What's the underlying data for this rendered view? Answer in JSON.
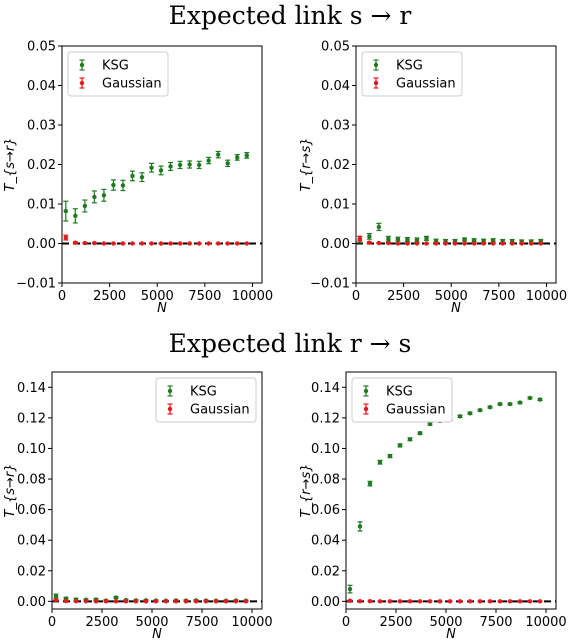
{
  "sections": [
    {
      "title": "Expected link s → r"
    },
    {
      "title": "Expected link r → s"
    }
  ],
  "colors": {
    "ksg": "#1f7a1f",
    "gaussian": "#e31a1c",
    "zero_line": "#000000"
  },
  "chart_data": [
    {
      "type": "scatter",
      "xlabel": "N",
      "ylabel": "T_{s→r}",
      "xlim": [
        0,
        10500
      ],
      "ylim": [
        -0.01,
        0.05
      ],
      "xticks": [
        0,
        2500,
        5000,
        7500,
        10000
      ],
      "yticks": [
        -0.01,
        0.0,
        0.01,
        0.02,
        0.03,
        0.04,
        0.05
      ],
      "ytick_labels": [
        "−0.01",
        "0.00",
        "0.01",
        "0.02",
        "0.03",
        "0.04",
        "0.05"
      ],
      "legend": {
        "position": "top-left",
        "entries": [
          "KSG",
          "Gaussian"
        ]
      },
      "series": [
        {
          "name": "KSG",
          "x": [
            200,
            700,
            1200,
            1700,
            2200,
            2700,
            3200,
            3700,
            4200,
            4700,
            5200,
            5700,
            6200,
            6700,
            7200,
            7700,
            8200,
            8700,
            9200,
            9700
          ],
          "y": [
            0.0082,
            0.007,
            0.0095,
            0.0118,
            0.0122,
            0.0148,
            0.0147,
            0.0171,
            0.0168,
            0.0192,
            0.0185,
            0.0195,
            0.0199,
            0.02,
            0.0199,
            0.021,
            0.0225,
            0.0203,
            0.0218,
            0.0223
          ],
          "err": [
            0.0025,
            0.0018,
            0.0015,
            0.0015,
            0.0015,
            0.0013,
            0.0013,
            0.0012,
            0.0011,
            0.0011,
            0.0011,
            0.001,
            0.0009,
            0.0009,
            0.0009,
            0.0008,
            0.0008,
            0.0008,
            0.0007,
            0.0007
          ]
        },
        {
          "name": "Gaussian",
          "x": [
            200,
            700,
            1200,
            1700,
            2200,
            2700,
            3200,
            3700,
            4200,
            4700,
            5200,
            5700,
            6200,
            6700,
            7200,
            7700,
            8200,
            8700,
            9200,
            9700
          ],
          "y": [
            0.0015,
            0.0002,
            0.0001,
            0.0001,
            0.0,
            0.0,
            0.0,
            0.0,
            0.0,
            0.0,
            0.0,
            0.0,
            0.0,
            0.0,
            0.0,
            0.0,
            0.0,
            0.0,
            0.0,
            0.0
          ],
          "err": [
            0.0006,
            0.0002,
            0.0001,
            0.0001,
            0.0001,
            0.0001,
            0.0001,
            0.0001,
            0.0001,
            0.0001,
            0.0001,
            0.0001,
            0.0001,
            0.0001,
            0.0001,
            0.0001,
            0.0001,
            0.0001,
            0.0001,
            0.0001
          ]
        }
      ]
    },
    {
      "type": "scatter",
      "xlabel": "N",
      "ylabel": "T_{r→s}",
      "xlim": [
        0,
        10500
      ],
      "ylim": [
        -0.01,
        0.05
      ],
      "xticks": [
        0,
        2500,
        5000,
        7500,
        10000
      ],
      "yticks": [
        -0.01,
        0.0,
        0.01,
        0.02,
        0.03,
        0.04,
        0.05
      ],
      "ytick_labels": [
        "−0.01",
        "0.00",
        "0.01",
        "0.02",
        "0.03",
        "0.04",
        "0.05"
      ],
      "legend": {
        "position": "top-left",
        "entries": [
          "KSG",
          "Gaussian"
        ]
      },
      "series": [
        {
          "name": "KSG",
          "x": [
            200,
            700,
            1200,
            1700,
            2200,
            2700,
            3200,
            3700,
            4200,
            4700,
            5200,
            5700,
            6200,
            6700,
            7200,
            7700,
            8200,
            8700,
            9200,
            9700
          ],
          "y": [
            0.001,
            0.0018,
            0.0042,
            0.0012,
            0.0011,
            0.001,
            0.0009,
            0.0013,
            0.0007,
            0.0006,
            0.0006,
            0.001,
            0.0008,
            0.0007,
            0.0008,
            0.0006,
            0.0006,
            0.0005,
            0.0005,
            0.0006
          ],
          "err": [
            0.0008,
            0.0007,
            0.0009,
            0.0006,
            0.0005,
            0.0005,
            0.0005,
            0.0005,
            0.0004,
            0.0004,
            0.0004,
            0.0004,
            0.0004,
            0.0004,
            0.0004,
            0.0004,
            0.0004,
            0.0004,
            0.0004,
            0.0004
          ]
        },
        {
          "name": "Gaussian",
          "x": [
            200,
            700,
            1200,
            1700,
            2200,
            2700,
            3200,
            3700,
            4200,
            4700,
            5200,
            5700,
            6200,
            6700,
            7200,
            7700,
            8200,
            8700,
            9200,
            9700
          ],
          "y": [
            0.0012,
            0.0002,
            0.0001,
            0.0001,
            0.0,
            0.0,
            0.0,
            0.0,
            0.0,
            0.0,
            0.0,
            0.0,
            0.0,
            0.0,
            0.0,
            0.0,
            0.0,
            0.0,
            0.0,
            0.0
          ],
          "err": [
            0.0006,
            0.0002,
            0.0001,
            0.0001,
            0.0001,
            0.0001,
            0.0001,
            0.0001,
            0.0001,
            0.0001,
            0.0001,
            0.0001,
            0.0001,
            0.0001,
            0.0001,
            0.0001,
            0.0001,
            0.0001,
            0.0001,
            0.0001
          ]
        }
      ]
    },
    {
      "type": "scatter",
      "xlabel": "N",
      "ylabel": "T_{s→r}",
      "xlim": [
        0,
        10500
      ],
      "ylim": [
        -0.005,
        0.15
      ],
      "xticks": [
        0,
        2500,
        5000,
        7500,
        10000
      ],
      "yticks": [
        0.0,
        0.02,
        0.04,
        0.06,
        0.08,
        0.1,
        0.12,
        0.14
      ],
      "ytick_labels": [
        "0.00",
        "0.02",
        "0.04",
        "0.06",
        "0.08",
        "0.10",
        "0.12",
        "0.14"
      ],
      "legend": {
        "position": "top-right",
        "entries": [
          "KSG",
          "Gaussian"
        ]
      },
      "series": [
        {
          "name": "KSG",
          "x": [
            200,
            700,
            1200,
            1700,
            2200,
            2700,
            3200,
            3700,
            4200,
            4700,
            5200,
            5700,
            6200,
            6700,
            7200,
            7700,
            8200,
            8700,
            9200,
            9700
          ],
          "y": [
            0.0035,
            0.0018,
            0.0012,
            0.001,
            0.0012,
            0.0005,
            0.0025,
            0.0008,
            0.0006,
            0.0007,
            0.0005,
            0.0004,
            0.0006,
            0.0005,
            0.0006,
            0.0005,
            0.0004,
            0.0004,
            0.0005,
            0.0004
          ],
          "err": [
            0.0012,
            0.0008,
            0.0007,
            0.0006,
            0.0006,
            0.0005,
            0.0006,
            0.0005,
            0.0005,
            0.0004,
            0.0004,
            0.0004,
            0.0004,
            0.0004,
            0.0004,
            0.0004,
            0.0004,
            0.0004,
            0.0004,
            0.0004
          ]
        },
        {
          "name": "Gaussian",
          "x": [
            200,
            700,
            1200,
            1700,
            2200,
            2700,
            3200,
            3700,
            4200,
            4700,
            5200,
            5700,
            6200,
            6700,
            7200,
            7700,
            8200,
            8700,
            9200,
            9700
          ],
          "y": [
            0.0008,
            0.0002,
            0.0001,
            0.0001,
            0.0,
            0.0,
            0.0,
            0.0,
            0.0,
            0.0,
            0.0,
            0.0,
            0.0,
            0.0,
            0.0,
            0.0,
            0.0,
            0.0,
            0.0,
            0.0
          ],
          "err": [
            0.0005,
            0.0002,
            0.0001,
            0.0001,
            0.0001,
            0.0001,
            0.0001,
            0.0001,
            0.0001,
            0.0001,
            0.0001,
            0.0001,
            0.0001,
            0.0001,
            0.0001,
            0.0001,
            0.0001,
            0.0001,
            0.0001,
            0.0001
          ]
        }
      ]
    },
    {
      "type": "scatter",
      "xlabel": "N",
      "ylabel": "T_{r→s}",
      "xlim": [
        0,
        10500
      ],
      "ylim": [
        -0.005,
        0.15
      ],
      "xticks": [
        0,
        2500,
        5000,
        7500,
        10000
      ],
      "yticks": [
        0.0,
        0.02,
        0.04,
        0.06,
        0.08,
        0.1,
        0.12,
        0.14
      ],
      "ytick_labels": [
        "0.00",
        "0.02",
        "0.04",
        "0.06",
        "0.08",
        "0.10",
        "0.12",
        "0.14"
      ],
      "legend": {
        "position": "top-left",
        "entries": [
          "KSG",
          "Gaussian"
        ]
      },
      "series": [
        {
          "name": "KSG",
          "x": [
            200,
            700,
            1200,
            1700,
            2200,
            2700,
            3200,
            3700,
            4200,
            4700,
            5200,
            5700,
            6200,
            6700,
            7200,
            7700,
            8200,
            8700,
            9200,
            9700
          ],
          "y": [
            0.008,
            0.049,
            0.077,
            0.091,
            0.095,
            0.102,
            0.106,
            0.11,
            0.116,
            0.118,
            0.119,
            0.121,
            0.123,
            0.125,
            0.127,
            0.129,
            0.129,
            0.13,
            0.133,
            0.132
          ],
          "err": [
            0.0025,
            0.003,
            0.0015,
            0.0012,
            0.001,
            0.001,
            0.0009,
            0.0008,
            0.0008,
            0.0008,
            0.0007,
            0.0007,
            0.0007,
            0.0006,
            0.0006,
            0.0006,
            0.0006,
            0.0006,
            0.0006,
            0.0006
          ]
        },
        {
          "name": "Gaussian",
          "x": [
            200,
            700,
            1200,
            1700,
            2200,
            2700,
            3200,
            3700,
            4200,
            4700,
            5200,
            5700,
            6200,
            6700,
            7200,
            7700,
            8200,
            8700,
            9200,
            9700
          ],
          "y": [
            0.0004,
            0.0001,
            0.0001,
            0.0,
            0.0,
            0.0,
            0.0,
            0.0,
            0.0,
            0.0,
            0.0,
            0.0,
            0.0,
            0.0,
            0.0,
            0.0,
            0.0,
            0.0,
            0.0,
            0.0
          ],
          "err": [
            0.0003,
            0.0001,
            0.0001,
            0.0001,
            0.0001,
            0.0001,
            0.0001,
            0.0001,
            0.0001,
            0.0001,
            0.0001,
            0.0001,
            0.0001,
            0.0001,
            0.0001,
            0.0001,
            0.0001,
            0.0001,
            0.0001,
            0.0001
          ]
        }
      ]
    }
  ]
}
